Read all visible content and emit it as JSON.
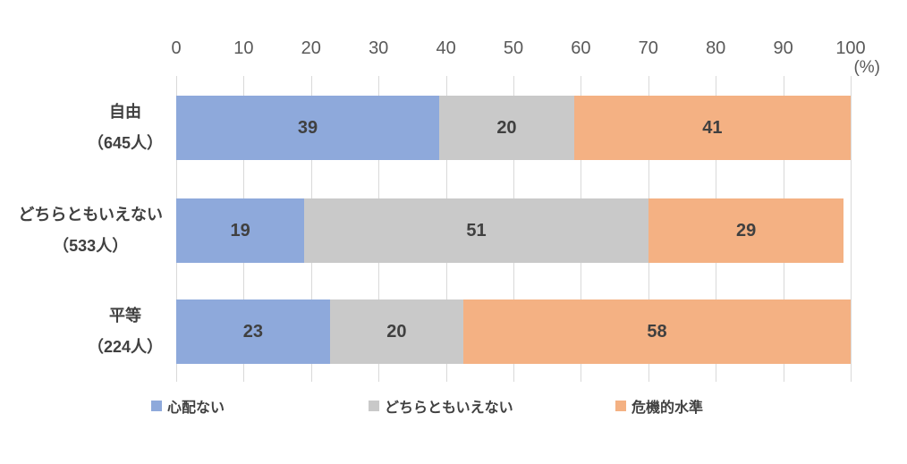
{
  "chart_data": {
    "type": "bar",
    "orientation": "horizontal",
    "stacked": true,
    "title": "",
    "unit_label": "(%)",
    "xlabel": "",
    "ylabel": "",
    "x_axis": {
      "min": 0,
      "max": 100,
      "step": 10,
      "tick_labels": [
        "0",
        "10",
        "20",
        "30",
        "40",
        "50",
        "60",
        "70",
        "80",
        "90",
        "100"
      ]
    },
    "gridlines": true,
    "legend_position": "bottom",
    "categories": [
      {
        "label": "自由",
        "count_label": "（645人）"
      },
      {
        "label": "どちらともいえない",
        "count_label": "（533人）"
      },
      {
        "label": "平等",
        "count_label": "（224人）"
      }
    ],
    "series": [
      {
        "name": "心配ない",
        "color": "#8EA9DB",
        "values": [
          39,
          19,
          23
        ]
      },
      {
        "name": "どちらともいえない",
        "color": "#C9C9C9",
        "values": [
          20,
          51,
          20
        ]
      },
      {
        "name": "危機的水準",
        "color": "#F4B183",
        "values": [
          41,
          29,
          58
        ]
      }
    ]
  },
  "colors": {
    "grid": "#D9D9D9",
    "axis_text": "#595959",
    "label_text": "#404040",
    "background": "#ffffff"
  }
}
